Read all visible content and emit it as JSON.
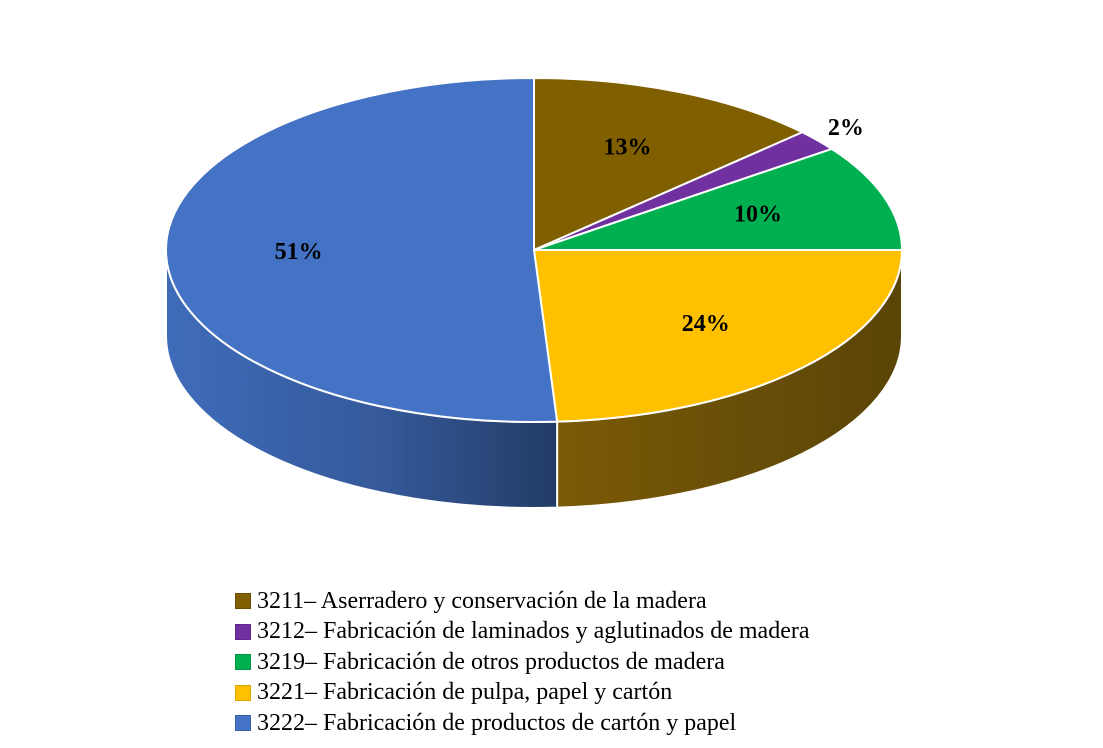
{
  "chart_data": {
    "type": "pie",
    "title": "",
    "legend_position": "bottom",
    "slices": [
      {
        "label": "3211– Aserradero y conservación de la madera",
        "value": 13,
        "display": "13%",
        "color": "#7f5f00"
      },
      {
        "label": "3212– Fabricación de laminados y aglutinados de madera",
        "value": 2,
        "display": "2%",
        "color": "#7030a0"
      },
      {
        "label": "3219– Fabricación de otros productos de madera",
        "value": 10,
        "display": "10%",
        "color": "#00b050"
      },
      {
        "label": "3221– Fabricación de pulpa, papel y cartón",
        "value": 24,
        "display": "24%",
        "color": "#ffc000"
      },
      {
        "label": "3222– Fabricación de productos de cartón y papel",
        "value": 51,
        "display": "51%",
        "color": "#4472c4"
      }
    ]
  }
}
